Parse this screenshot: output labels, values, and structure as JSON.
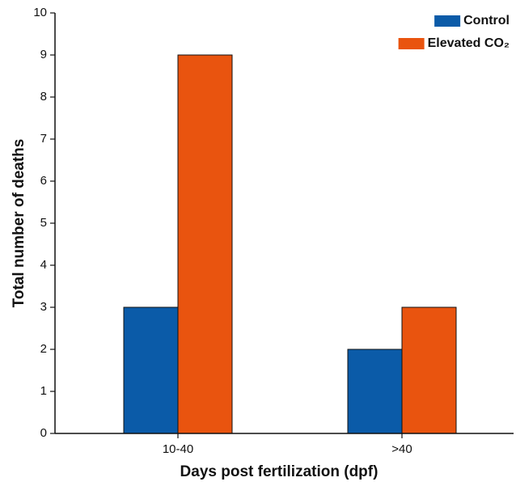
{
  "chart_data": {
    "type": "bar",
    "x_label": "Days post fertilization (dpf)",
    "y_label": "Total number of deaths",
    "categories": [
      "10-40",
      ">40"
    ],
    "series": [
      {
        "name": "Control",
        "color": "#0b5ba8",
        "values": [
          3,
          2
        ]
      },
      {
        "name": "Elevated CO₂",
        "color": "#e9540f",
        "values": [
          9,
          3
        ]
      }
    ],
    "ylim": [
      0,
      10
    ],
    "yticks": [
      0,
      1,
      2,
      3,
      4,
      5,
      6,
      7,
      8,
      9,
      10
    ],
    "legend": "upper right",
    "grid": false
  }
}
